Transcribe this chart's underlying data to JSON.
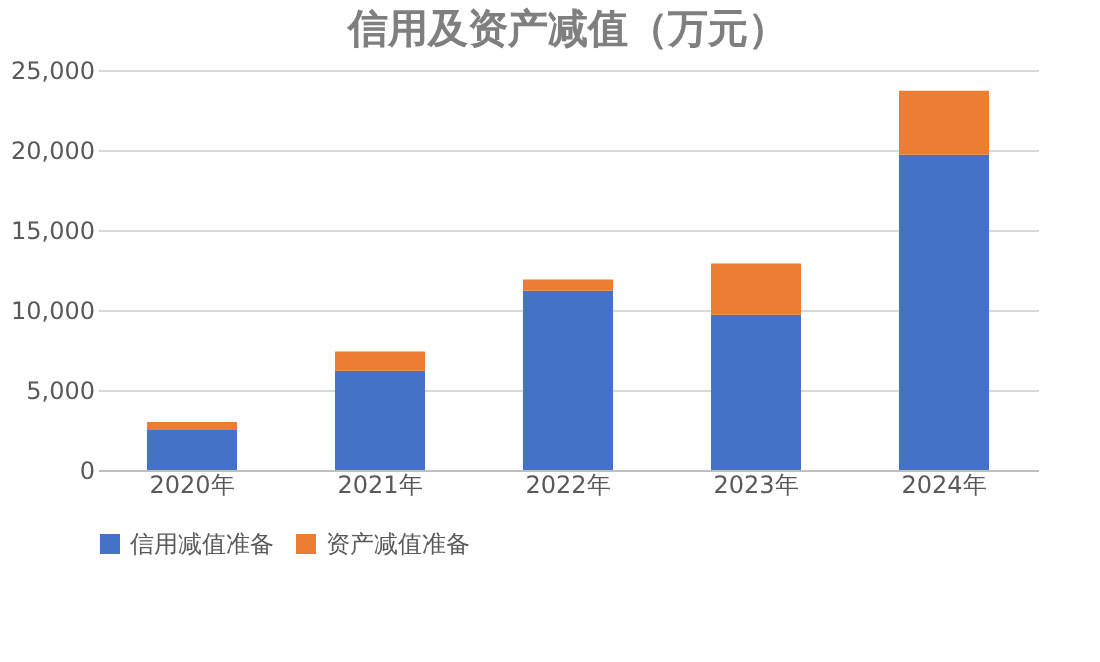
{
  "chart_data": {
    "type": "bar",
    "stacked": true,
    "title": "信用及资产减值（万元）",
    "categories": [
      "2020年",
      "2021年",
      "2022年",
      "2023年",
      "2024年"
    ],
    "series": [
      {
        "name": "信用减值准备",
        "color": "#4472c4",
        "values": [
          2500,
          6200,
          11200,
          9700,
          19700
        ]
      },
      {
        "name": "资产减值准备",
        "color": "#ed7d31",
        "values": [
          500,
          1200,
          700,
          3200,
          4000
        ]
      }
    ],
    "ylim": [
      0,
      25000
    ],
    "yticks": [
      0,
      {
        "value": 5000,
        "label": "5,000"
      },
      {
        "value": 10000,
        "label": "10,000"
      },
      {
        "value": 15000,
        "label": "15,000"
      },
      {
        "value": 20000,
        "label": "20,000"
      },
      {
        "value": 25000,
        "label": "25,000"
      }
    ],
    "grid": "y",
    "legend": "bottom"
  }
}
